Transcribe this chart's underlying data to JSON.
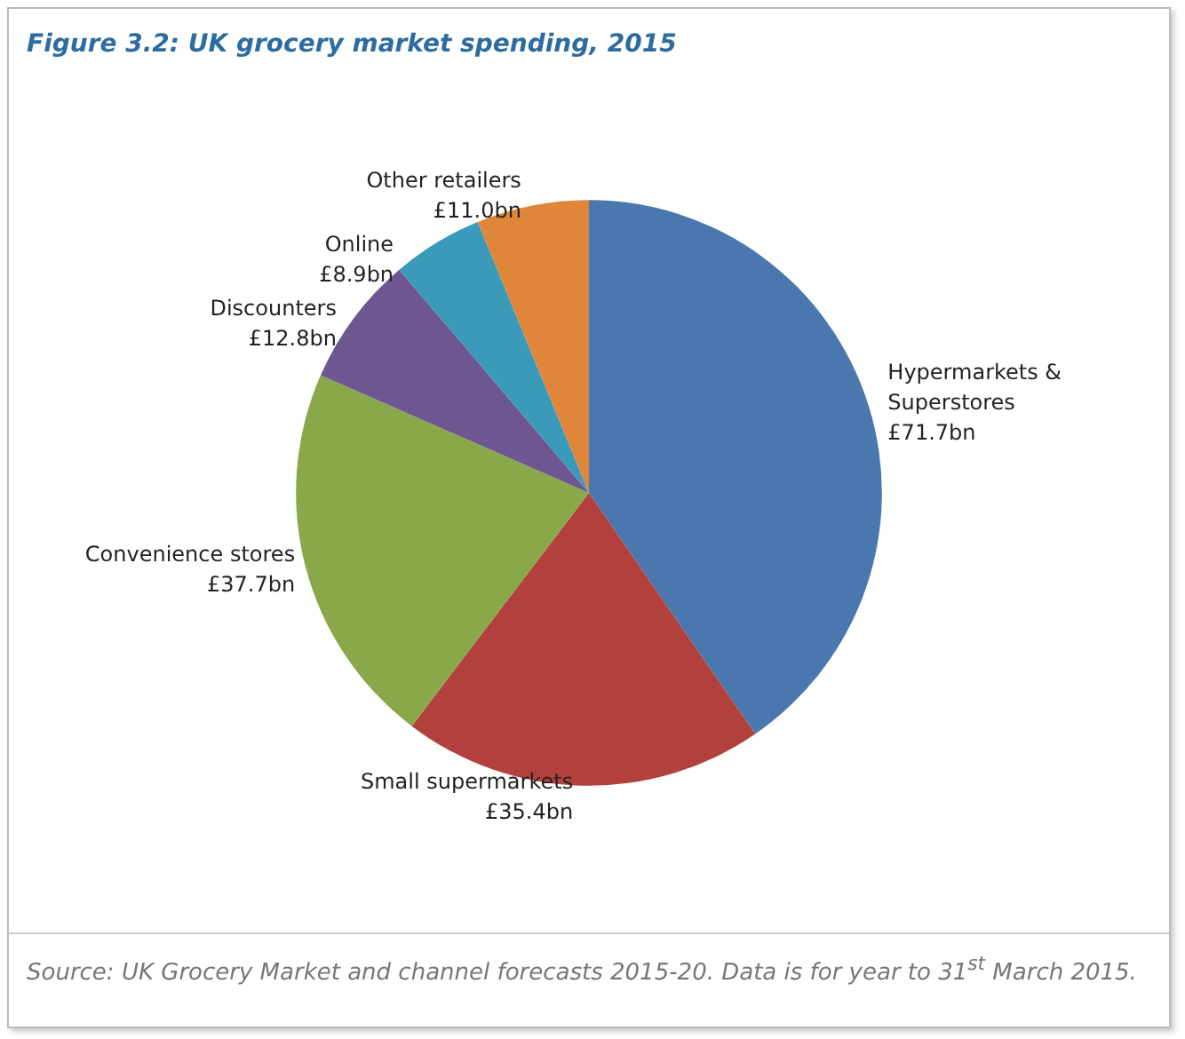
{
  "chart_data": {
    "type": "pie",
    "title": "Figure 3.2: UK grocery market spending, 2015",
    "categories": [
      "Hypermarkets & Superstores",
      "Small supermarkets",
      "Convenience stores",
      "Discounters",
      "Online",
      "Other retailers"
    ],
    "values": [
      71.7,
      35.4,
      37.7,
      12.8,
      8.9,
      11.0
    ],
    "value_labels": [
      "£71.7bn",
      "£35.4bn",
      "£37.7bn",
      "£12.8bn",
      "£8.9bn",
      "£11.0bn"
    ],
    "colors": [
      "#4a78ae",
      "#b2413e",
      "#88a84a",
      "#6e5790",
      "#3b9ab9",
      "#e0863a"
    ],
    "annotations": [
      "Source: UK Grocery Market and channel forecasts 2015-20. Data is for year to 31$^{st}$ March 2015."
    ]
  }
}
